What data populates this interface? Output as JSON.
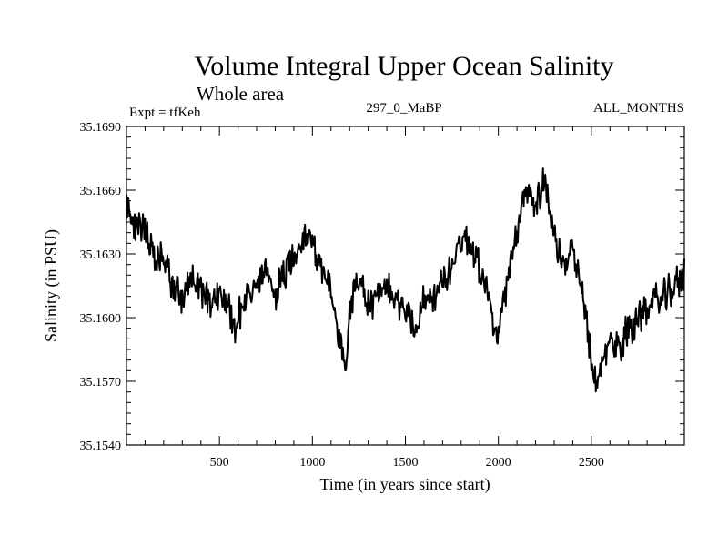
{
  "chart_data": {
    "type": "line",
    "title": "Volume Integral Upper Ocean Salinity",
    "subtitle": "Whole area",
    "expt_label": "Expt = tfKeh",
    "run_label": "297_0_MaBP",
    "period_label": "ALL_MONTHS",
    "xlabel": "Time (in years since start)",
    "ylabel": "Salinity (in PSU)",
    "xlim": [
      0,
      3000
    ],
    "ylim": [
      35.154,
      35.169
    ],
    "x_ticks": [
      500,
      1000,
      1500,
      2000,
      2500
    ],
    "x_tick_labels": [
      "500",
      "1000",
      "1500",
      "2000",
      "2500"
    ],
    "y_ticks": [
      35.154,
      35.157,
      35.16,
      35.163,
      35.166,
      35.169
    ],
    "y_tick_labels": [
      "35.1540",
      "35.1570",
      "35.1600",
      "35.1630",
      "35.1660",
      "35.1690"
    ],
    "grid": false,
    "legend": "none",
    "line_color": "#000000",
    "series": [
      {
        "x": [
          0,
          50,
          100,
          150,
          200,
          250,
          300,
          350,
          400,
          450,
          500,
          550,
          580,
          600,
          650,
          700,
          750,
          800,
          850,
          900,
          950,
          1000,
          1050,
          1100,
          1150,
          1180,
          1200,
          1250,
          1300,
          1350,
          1400,
          1450,
          1500,
          1550,
          1600,
          1650,
          1700,
          1750,
          1800,
          1850,
          1900,
          1950,
          1980,
          2000,
          2050,
          2100,
          2150,
          2200,
          2250,
          2300,
          2350,
          2400,
          2450,
          2500,
          2530,
          2560,
          2600,
          2650,
          2700,
          2750,
          2800,
          2850,
          2900,
          2950,
          3000
        ],
        "y": [
          35.1655,
          35.164,
          35.1645,
          35.1625,
          35.1628,
          35.1615,
          35.161,
          35.1618,
          35.1612,
          35.1608,
          35.1612,
          35.1605,
          35.1595,
          35.1602,
          35.161,
          35.1615,
          35.162,
          35.1612,
          35.162,
          35.163,
          35.164,
          35.1635,
          35.1625,
          35.161,
          35.159,
          35.157,
          35.1605,
          35.162,
          35.1605,
          35.161,
          35.1612,
          35.161,
          35.1605,
          35.1595,
          35.1608,
          35.161,
          35.1615,
          35.1625,
          35.1638,
          35.1635,
          35.1625,
          35.161,
          35.159,
          35.1595,
          35.1615,
          35.164,
          35.166,
          35.1655,
          35.1665,
          35.164,
          35.162,
          35.1635,
          35.161,
          35.158,
          35.1565,
          35.158,
          35.159,
          35.1585,
          35.1595,
          35.16,
          35.1605,
          35.1608,
          35.161,
          35.1615,
          35.162
        ]
      }
    ]
  }
}
